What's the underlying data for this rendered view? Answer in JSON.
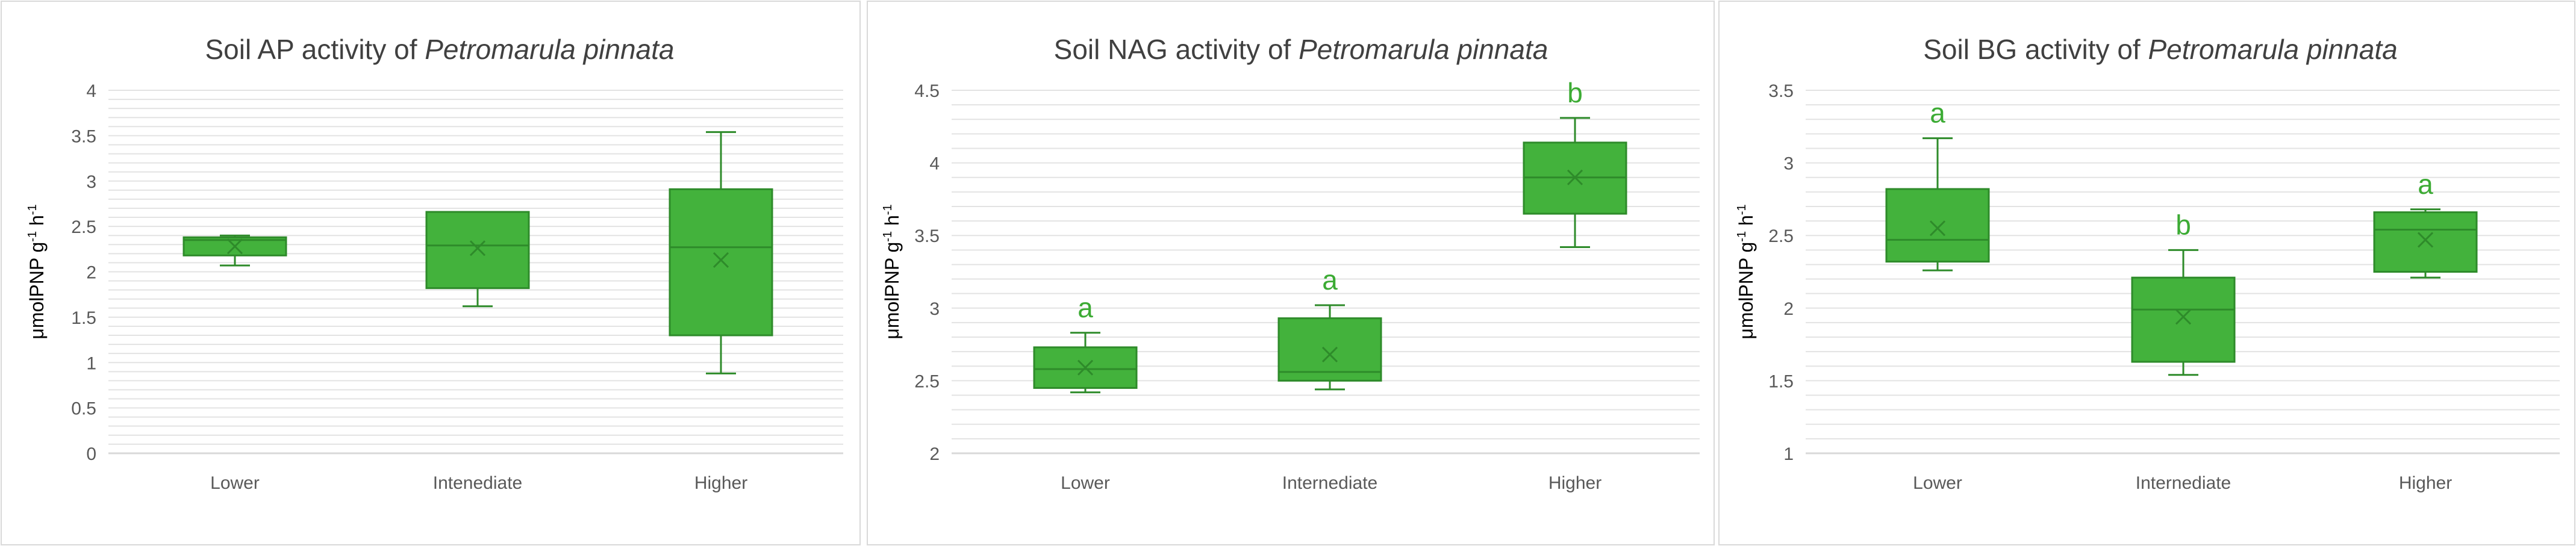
{
  "colors": {
    "box_fill": "#43B23C",
    "box_stroke": "#2E8B2A",
    "letter": "#3CAB34",
    "grid": "#E3E3E3",
    "axis": "#D9D9D9",
    "text": "#595959",
    "title": "#404040",
    "panel_border": "#D9D9D9"
  },
  "chart_data": [
    {
      "type": "box",
      "title": {
        "prefix": "Soil AP activity of ",
        "species": "Petromarula pinnata"
      },
      "ylabel": {
        "base": "μmolPNP g",
        "exp1": "-1",
        "mid": " h",
        "exp2": "-1"
      },
      "categories": [
        "Lower",
        "Intenediate",
        "Higher"
      ],
      "ylim": [
        0,
        4
      ],
      "y_ticks": [
        "0",
        "0.5",
        "1",
        "1.5",
        "2",
        "2.5",
        "3",
        "3.5",
        "4"
      ],
      "minor_step": 0.1,
      "boxes": [
        {
          "min": 2.07,
          "q1": 2.18,
          "median": 2.35,
          "q3": 2.38,
          "max": 2.4,
          "mean": 2.28,
          "letter": ""
        },
        {
          "min": 1.62,
          "q1": 1.82,
          "median": 2.29,
          "q3": 2.66,
          "max": 2.66,
          "mean": 2.26,
          "letter": ""
        },
        {
          "min": 0.88,
          "q1": 1.3,
          "median": 2.27,
          "q3": 2.91,
          "max": 3.54,
          "mean": 2.13,
          "letter": ""
        }
      ]
    },
    {
      "type": "box",
      "title": {
        "prefix": "Soil  NAG activity of ",
        "species": "Petromarula pinnata"
      },
      "ylabel": {
        "base": "μmolPNP g",
        "exp1": "-1",
        "mid": " h",
        "exp2": "-1"
      },
      "categories": [
        "Lower",
        "Internediate",
        "Higher"
      ],
      "ylim": [
        2,
        4.5
      ],
      "y_ticks": [
        "2",
        "2.5",
        "3",
        "3.5",
        "4",
        "4.5"
      ],
      "minor_step": 0.1,
      "boxes": [
        {
          "min": 2.42,
          "q1": 2.45,
          "median": 2.58,
          "q3": 2.73,
          "max": 2.83,
          "mean": 2.59,
          "letter": "a"
        },
        {
          "min": 2.44,
          "q1": 2.5,
          "median": 2.56,
          "q3": 2.93,
          "max": 3.02,
          "mean": 2.68,
          "letter": "a"
        },
        {
          "min": 3.42,
          "q1": 3.65,
          "median": 3.9,
          "q3": 4.14,
          "max": 4.31,
          "mean": 3.9,
          "letter": "b"
        }
      ]
    },
    {
      "type": "box",
      "title": {
        "prefix": "Soil BG activity of ",
        "species": "Petromarula pinnata"
      },
      "ylabel": {
        "base": "μmolPNP g",
        "exp1": "-1",
        "mid": " h",
        "exp2": "-1"
      },
      "categories": [
        "Lower",
        "Internediate",
        "Higher"
      ],
      "ylim": [
        1,
        3.5
      ],
      "y_ticks": [
        "1",
        "1.5",
        "2",
        "2.5",
        "3",
        "3.5"
      ],
      "minor_step": 0.1,
      "boxes": [
        {
          "min": 2.26,
          "q1": 2.32,
          "median": 2.47,
          "q3": 2.82,
          "max": 3.17,
          "mean": 2.55,
          "letter": "a"
        },
        {
          "min": 1.54,
          "q1": 1.63,
          "median": 1.99,
          "q3": 2.21,
          "max": 2.4,
          "mean": 1.94,
          "letter": "b"
        },
        {
          "min": 2.21,
          "q1": 2.25,
          "median": 2.54,
          "q3": 2.66,
          "max": 2.68,
          "mean": 2.47,
          "letter": "a"
        }
      ]
    }
  ]
}
